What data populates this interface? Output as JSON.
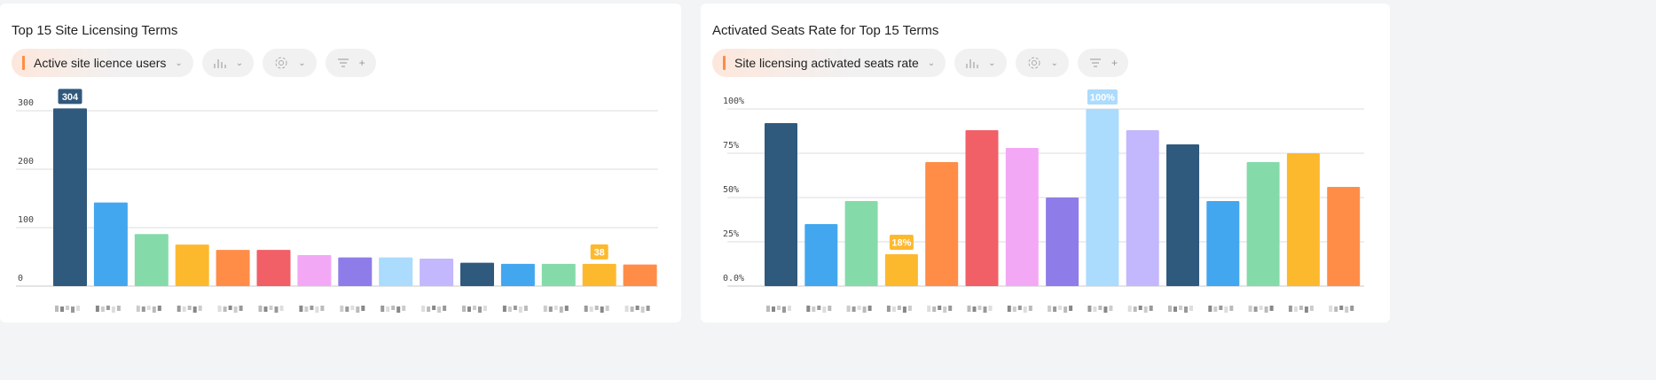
{
  "chart_data": [
    {
      "type": "bar",
      "title": "Top 15 Site Licensing Terms",
      "metric_label": "Active site licence users",
      "ylim": [
        0,
        300
      ],
      "yticks": [
        0,
        100,
        200,
        300
      ],
      "ytick_labels": [
        "0",
        "100",
        "200",
        "300"
      ],
      "grid": true,
      "values": [
        304,
        143,
        89,
        71,
        62,
        62,
        53,
        49,
        49,
        47,
        40,
        38,
        38,
        38,
        37
      ],
      "data_labels": {
        "0": "304",
        "13": "38"
      },
      "colors": [
        "#30597e",
        "#42a7ef",
        "#84dba9",
        "#fdb92e",
        "#ff8d48",
        "#f15f67",
        "#f3a8f5",
        "#8e7de8",
        "#abdbfd",
        "#c3b7fd",
        "#30597e",
        "#42a7ef",
        "#84dba9",
        "#fdb92e",
        "#ff8d48"
      ]
    },
    {
      "type": "bar",
      "title": "Activated Seats Rate for Top 15 Terms",
      "metric_label": "Site licensing activated seats rate",
      "ylim": [
        0,
        100
      ],
      "yticks": [
        0,
        25,
        50,
        75,
        100
      ],
      "ytick_labels": [
        "0.0%",
        "25%",
        "50%",
        "75%",
        "100%"
      ],
      "grid": true,
      "values": [
        92,
        35,
        48,
        18,
        70,
        88,
        78,
        50,
        100,
        88,
        80,
        48,
        70,
        75,
        56
      ],
      "data_labels": {
        "3": "18%",
        "8": "100%"
      },
      "colors": [
        "#30597e",
        "#42a7ef",
        "#84dba9",
        "#fdb92e",
        "#ff8d48",
        "#f15f67",
        "#f3a8f5",
        "#8e7de8",
        "#abdbfd",
        "#c3b7fd",
        "#30597e",
        "#42a7ef",
        "#84dba9",
        "#fdb92e",
        "#ff8d48"
      ]
    }
  ],
  "icons": {
    "chart_type": "bar-chart-icon",
    "settings": "gear-icon",
    "filter": "filter-icon",
    "add": "plus-icon",
    "dropdown": "chevron-down-icon"
  },
  "glyphs": {
    "chevron": "⌄",
    "plus": "+"
  }
}
